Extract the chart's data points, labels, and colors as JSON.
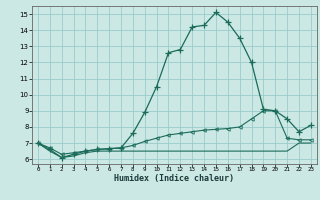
{
  "xlabel": "Humidex (Indice chaleur)",
  "bg_color": "#cce8e4",
  "grid_color": "#99cccc",
  "line_color": "#1a6b5a",
  "xlim": [
    -0.5,
    23.5
  ],
  "ylim": [
    5.7,
    15.5
  ],
  "xticks": [
    0,
    1,
    2,
    3,
    4,
    5,
    6,
    7,
    8,
    9,
    10,
    11,
    12,
    13,
    14,
    15,
    16,
    17,
    18,
    19,
    20,
    21,
    22,
    23
  ],
  "yticks": [
    6,
    7,
    8,
    9,
    10,
    11,
    12,
    13,
    14,
    15
  ],
  "curve1_x": [
    0,
    1,
    2,
    3,
    4,
    5,
    6,
    7,
    8,
    9,
    10,
    11,
    12,
    13,
    14,
    15,
    16,
    17,
    18,
    19,
    20,
    21,
    22,
    23
  ],
  "curve1_y": [
    7.0,
    6.6,
    6.1,
    6.3,
    6.5,
    6.6,
    6.65,
    6.7,
    7.6,
    8.9,
    10.5,
    12.6,
    12.8,
    14.2,
    14.3,
    15.1,
    14.5,
    13.5,
    12.0,
    9.1,
    9.0,
    8.5,
    7.7,
    8.1
  ],
  "curve2_x": [
    0,
    1,
    2,
    3,
    4,
    5,
    6,
    7,
    8,
    9,
    10,
    11,
    12,
    13,
    14,
    15,
    16,
    17,
    18,
    19,
    20,
    21,
    22,
    23
  ],
  "curve2_y": [
    7.0,
    6.7,
    6.3,
    6.4,
    6.5,
    6.6,
    6.65,
    6.7,
    6.85,
    7.1,
    7.3,
    7.5,
    7.6,
    7.7,
    7.8,
    7.85,
    7.9,
    8.0,
    8.5,
    9.0,
    9.0,
    7.3,
    7.2,
    7.2
  ],
  "curve3_x": [
    0,
    1,
    2,
    3,
    4,
    5,
    6,
    7,
    8,
    9,
    10,
    11,
    12,
    13,
    14,
    15,
    16,
    17,
    18,
    19,
    20,
    21,
    22,
    23
  ],
  "curve3_y": [
    7.0,
    6.5,
    6.1,
    6.2,
    6.4,
    6.5,
    6.5,
    6.5,
    6.5,
    6.5,
    6.5,
    6.5,
    6.5,
    6.5,
    6.5,
    6.5,
    6.5,
    6.5,
    6.5,
    6.5,
    6.5,
    6.5,
    7.0,
    7.0
  ]
}
